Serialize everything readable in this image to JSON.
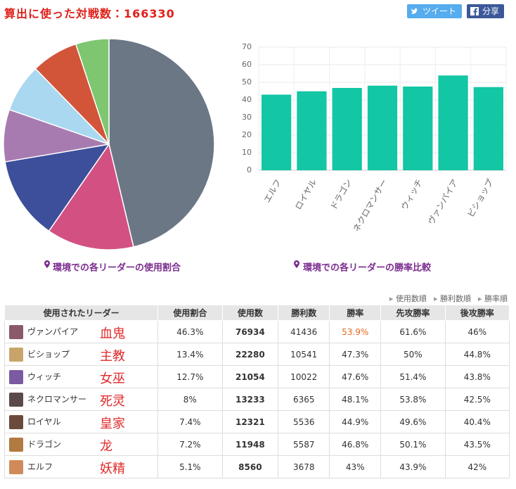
{
  "header": {
    "title": "算出に使った対戦数：",
    "match_count": 166330,
    "buttons": [
      "ツイート",
      "分享"
    ]
  },
  "chart_data": [
    {
      "type": "pie",
      "caption": "環境での各リーダーの使用割合",
      "values": [
        46.3,
        13.4,
        12.7,
        8,
        7.4,
        7.2,
        5.1
      ],
      "colors": [
        "#6b7785",
        "#d25182",
        "#3d4f9a",
        "#a77bb0",
        "#a9d8f0",
        "#d2553a",
        "#7ec670"
      ]
    },
    {
      "type": "bar",
      "caption": "環境での各リーダーの勝率比較",
      "categories": [
        "エルフ",
        "ロイヤル",
        "ドラゴン",
        "ネクロマンサー",
        "ウィッチ",
        "ヴァンパイア",
        "ビショップ"
      ],
      "values": [
        43,
        44.9,
        46.8,
        48.1,
        47.6,
        53.9,
        47.3
      ],
      "color": "#13c6a4",
      "ylim": [
        0,
        70
      ],
      "yticks": [
        0,
        10,
        20,
        30,
        40,
        50,
        60,
        70
      ],
      "grid": true
    }
  ],
  "sort_links": [
    "使用数順",
    "勝利数順",
    "勝率順"
  ],
  "table": {
    "header": [
      "使用されたリーダー",
      "使用割合",
      "使用数",
      "勝利数",
      "勝率",
      "先攻勝率",
      "後攻勝率"
    ],
    "rows": [
      [
        "ヴァンパイア",
        "血鬼",
        "46.3%",
        "76934",
        "41436",
        "53.9%",
        "61.6%",
        "46%"
      ],
      [
        "ビショップ",
        "主教",
        "13.4%",
        "22280",
        "10541",
        "47.3%",
        "50%",
        "44.8%"
      ],
      [
        "ウィッチ",
        "女巫",
        "12.7%",
        "21054",
        "10022",
        "47.6%",
        "51.4%",
        "43.8%"
      ],
      [
        "ネクロマンサー",
        "死灵",
        "8%",
        "13233",
        "6365",
        "48.1%",
        "53.8%",
        "42.5%"
      ],
      [
        "ロイヤル",
        "皇家",
        "7.4%",
        "12321",
        "5536",
        "44.9%",
        "49.6%",
        "40.4%"
      ],
      [
        "ドラゴン",
        "龙",
        "7.2%",
        "11948",
        "5587",
        "46.8%",
        "50.1%",
        "43.5%"
      ],
      [
        "エルフ",
        "妖精",
        "5.1%",
        "8560",
        "3678",
        "43%",
        "43.9%",
        "42%"
      ]
    ]
  }
}
